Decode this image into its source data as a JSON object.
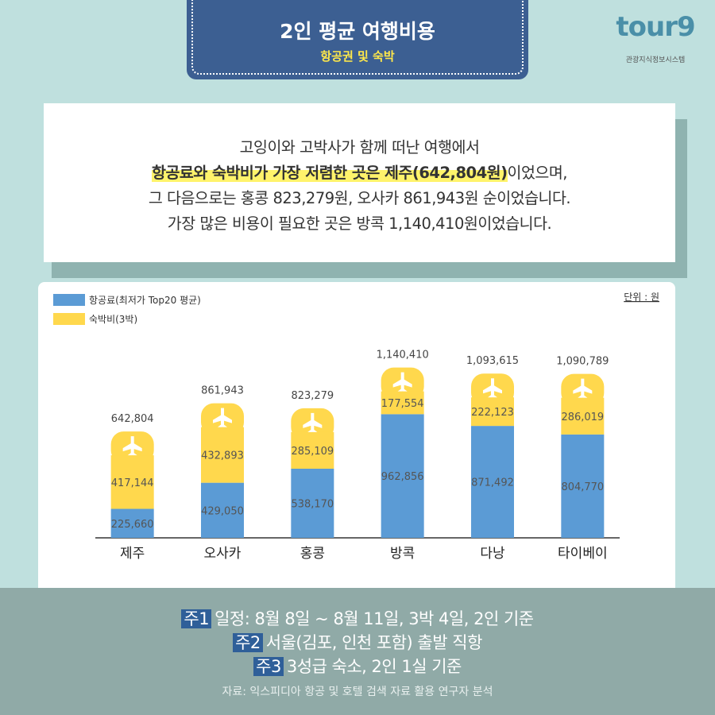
{
  "header": {
    "title": "2인 평균 여행비용",
    "subtitle": "항공권 및 숙박"
  },
  "logo": {
    "name": "tour9",
    "tagline": "관광지식정보시스템"
  },
  "summary": {
    "line1": "고잉이와 고박사가 함께 떠난 여행에서",
    "highlight": "항공료와 숙박비가 가장 저렴한 곳은 제주(642,804원)",
    "line2_rest": "이었으며,",
    "line3": "그 다음으로는 홍콩 823,279원, 오사카 861,943원 순이었습니다.",
    "line4": "가장 많은 비용이 필요한 곳은 방콕 1,140,410원이었습니다."
  },
  "chart_data": {
    "type": "bar",
    "stacked": true,
    "unit_label": "단위 : 원",
    "categories": [
      "제주",
      "오사카",
      "홍콩",
      "방콕",
      "다낭",
      "타이베이"
    ],
    "series": [
      {
        "name": "항공료(최저가 Top20 평균)",
        "color": "#5b9bd5",
        "values": [
          225660,
          429050,
          538170,
          962856,
          871492,
          804770
        ],
        "value_labels": [
          "225,660",
          "429,050",
          "538,170",
          "962,856",
          "871,492",
          "804,770"
        ]
      },
      {
        "name": "숙박비(3박)",
        "color": "#ffd84d",
        "values": [
          417144,
          432893,
          285109,
          177554,
          222123,
          286019
        ],
        "value_labels": [
          "417,144",
          "432,893",
          "285,109",
          "177,554",
          "222,123",
          "286,019"
        ]
      }
    ],
    "totals": {
      "values": [
        642804,
        861943,
        823279,
        1140410,
        1093615,
        1090789
      ],
      "value_labels": [
        "642,804",
        "861,943",
        "823,279",
        "1,140,410",
        "1,093,615",
        "1,090,789"
      ]
    },
    "ylim": [
      0,
      1200000
    ]
  },
  "notes": [
    {
      "tag": "주1",
      "text": "일정: 8월 8일 ~ 8월 11일, 3박 4일, 2인 기준"
    },
    {
      "tag": "주2",
      "text": "서울(김포, 인천 포함) 출발 직항"
    },
    {
      "tag": "주3",
      "text": "3성급 숙소, 2인 1실 기준"
    }
  ],
  "source": "자료: 익스피디아 항공 및 호텔 검색 자료 활용 연구자 분석"
}
